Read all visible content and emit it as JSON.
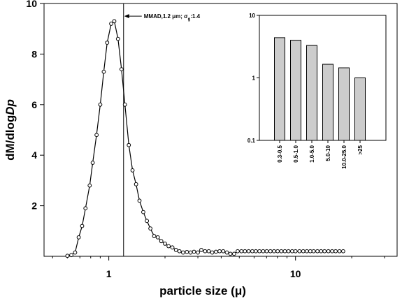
{
  "chart_data": [
    {
      "type": "line",
      "xlabel": "particle size (μ)",
      "ylabel": "dM/dlogDp",
      "xscale": "log",
      "xlim": [
        0.45,
        35
      ],
      "ylim": [
        0,
        10
      ],
      "xticks": [
        {
          "value": 1,
          "label": "1"
        },
        {
          "value": 10,
          "label": "10"
        }
      ],
      "yticks": [
        {
          "value": 2,
          "label": "2"
        },
        {
          "value": 4,
          "label": "4"
        },
        {
          "value": 6,
          "label": "6"
        },
        {
          "value": 8,
          "label": "8"
        },
        {
          "value": 10,
          "label": "10"
        }
      ],
      "marker": "open-circle",
      "series": [
        {
          "x": [
            0.6,
            0.63,
            0.66,
            0.69,
            0.72,
            0.75,
            0.79,
            0.82,
            0.86,
            0.9,
            0.94,
            0.98,
            1.03,
            1.07,
            1.12,
            1.17,
            1.22,
            1.28,
            1.34,
            1.4,
            1.46,
            1.53,
            1.6,
            1.67,
            1.75,
            1.83,
            1.91,
            2.0,
            2.09,
            2.19,
            2.29,
            2.39,
            2.5,
            2.62,
            2.74,
            2.86,
            3.0,
            3.13,
            3.28,
            3.43,
            3.58,
            3.75,
            3.92,
            4.1,
            4.29,
            4.48,
            4.69,
            4.9,
            5.13,
            5.36,
            5.61,
            5.87,
            6.13,
            6.41,
            6.71,
            7.01,
            7.34,
            7.67,
            8.02,
            8.39,
            8.77,
            9.17,
            9.59,
            10.0,
            10.5,
            11.0,
            11.5,
            12.0,
            12.5,
            13.1,
            13.7,
            14.3,
            15.0,
            15.7,
            16.4,
            17.2,
            18.0
          ],
          "y": [
            0.02,
            0.05,
            0.15,
            0.75,
            1.2,
            1.9,
            2.8,
            3.7,
            4.8,
            6.0,
            7.3,
            8.45,
            9.2,
            9.3,
            8.6,
            7.4,
            6.0,
            4.4,
            3.4,
            2.85,
            2.2,
            1.75,
            1.4,
            1.1,
            0.8,
            0.75,
            0.6,
            0.5,
            0.4,
            0.35,
            0.25,
            0.2,
            0.15,
            0.17,
            0.15,
            0.18,
            0.15,
            0.25,
            0.2,
            0.2,
            0.15,
            0.18,
            0.2,
            0.2,
            0.15,
            0.1,
            0.1,
            0.2,
            0.2,
            0.2,
            0.2,
            0.2,
            0.2,
            0.2,
            0.2,
            0.2,
            0.2,
            0.2,
            0.2,
            0.2,
            0.2,
            0.2,
            0.2,
            0.2,
            0.2,
            0.2,
            0.2,
            0.2,
            0.2,
            0.2,
            0.2,
            0.2,
            0.2,
            0.2,
            0.2,
            0.2,
            0.2
          ]
        }
      ],
      "reference_line": {
        "x": 1.2,
        "orientation": "vertical"
      },
      "annotation": {
        "prefix": "MMAD,1.2 μm; σ",
        "sub": "g",
        "suffix": ":1.4",
        "arrow_to_x": 1.2,
        "y": 9.5
      }
    },
    {
      "type": "bar",
      "yscale": "log",
      "ylim": [
        0.1,
        10
      ],
      "yticks": [
        {
          "value": 0.1,
          "label": "0.1"
        },
        {
          "value": 1,
          "label": "1"
        },
        {
          "value": 10,
          "label": "10"
        }
      ],
      "categories": [
        "0.3-0.5",
        "0.5-1.0",
        "1.0-5.0",
        "5.0-10",
        "10.0-25.0",
        ">25"
      ],
      "values": [
        4.4,
        4.0,
        3.3,
        1.65,
        1.45,
        1.0
      ],
      "bar_color": "#cccccc"
    }
  ]
}
